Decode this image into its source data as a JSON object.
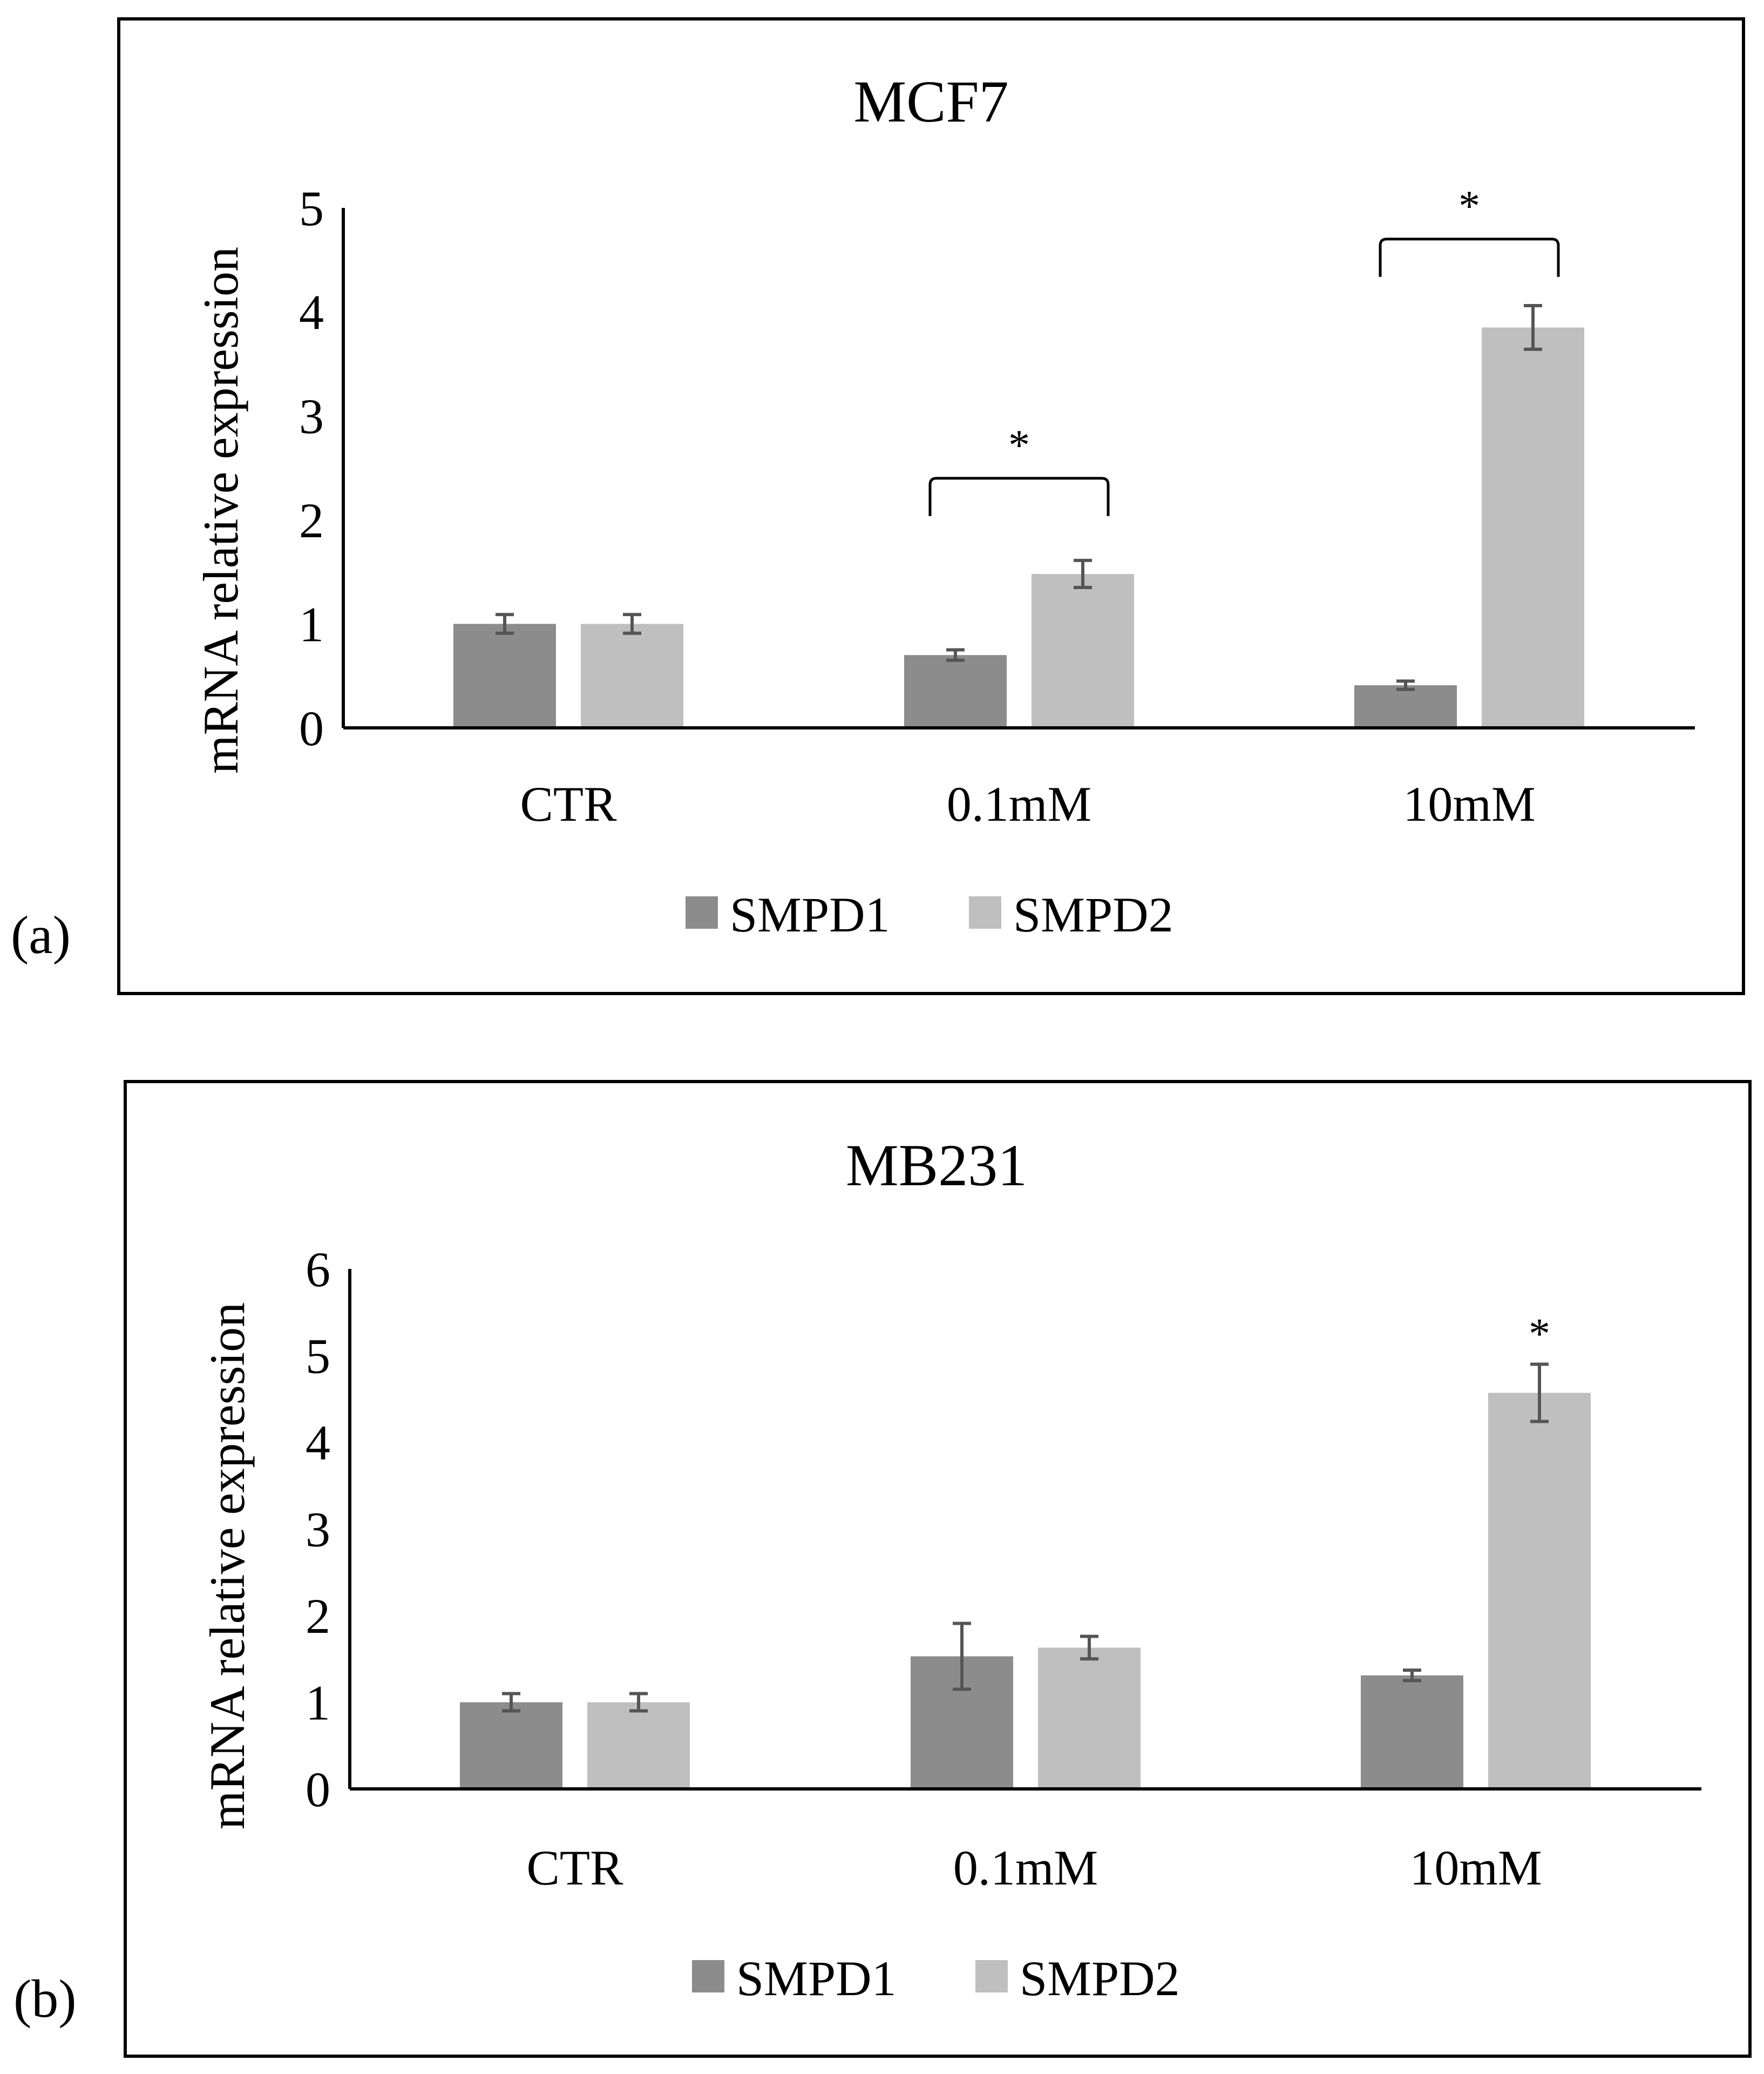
{
  "panels": [
    {
      "panel_label": "(a)",
      "colors": {
        "SMPD1": "#8c8c8c",
        "SMPD2": "#bfbfbf",
        "error": "#555555",
        "axis": "#000000"
      },
      "chart_data": {
        "type": "bar",
        "title": "MCF7",
        "xlabel": "",
        "ylabel": "mRNA relative expression",
        "categories": [
          "CTR",
          "0.1mM",
          "10mM"
        ],
        "ylim": [
          0,
          5
        ],
        "yticks": [
          0,
          1,
          2,
          3,
          4,
          5
        ],
        "series": [
          {
            "name": "SMPD1",
            "values": [
              1.0,
              0.7,
              0.41
            ],
            "errors": [
              0.09,
              0.05,
              0.04
            ]
          },
          {
            "name": "SMPD2",
            "values": [
              1.0,
              1.48,
              3.85
            ],
            "errors": [
              0.09,
              0.13,
              0.21
            ]
          }
        ],
        "legend": "bottom",
        "annotations": [
          {
            "text": "*",
            "category_index": 1,
            "type": "bracket",
            "y": 2.4
          },
          {
            "text": "*",
            "category_index": 2,
            "type": "bracket",
            "y": 4.7
          }
        ]
      }
    },
    {
      "panel_label": "(b)",
      "colors": {
        "SMPD1": "#8c8c8c",
        "SMPD2": "#bfbfbf",
        "error": "#555555",
        "axis": "#000000"
      },
      "chart_data": {
        "type": "bar",
        "title": "MB231",
        "xlabel": "",
        "ylabel": "mRNA relative expression",
        "categories": [
          "CTR",
          "0.1mM",
          "10mM"
        ],
        "ylim": [
          0,
          6
        ],
        "yticks": [
          0,
          1,
          2,
          3,
          4,
          5,
          6
        ],
        "series": [
          {
            "name": "SMPD1",
            "values": [
              1.0,
              1.53,
              1.31
            ],
            "errors": [
              0.1,
              0.38,
              0.06
            ]
          },
          {
            "name": "SMPD2",
            "values": [
              1.0,
              1.63,
              4.57
            ],
            "errors": [
              0.1,
              0.13,
              0.33
            ]
          }
        ],
        "legend": "bottom",
        "annotations": [
          {
            "text": "*",
            "category_index": 2,
            "series_index": 1,
            "type": "above"
          }
        ]
      }
    }
  ]
}
